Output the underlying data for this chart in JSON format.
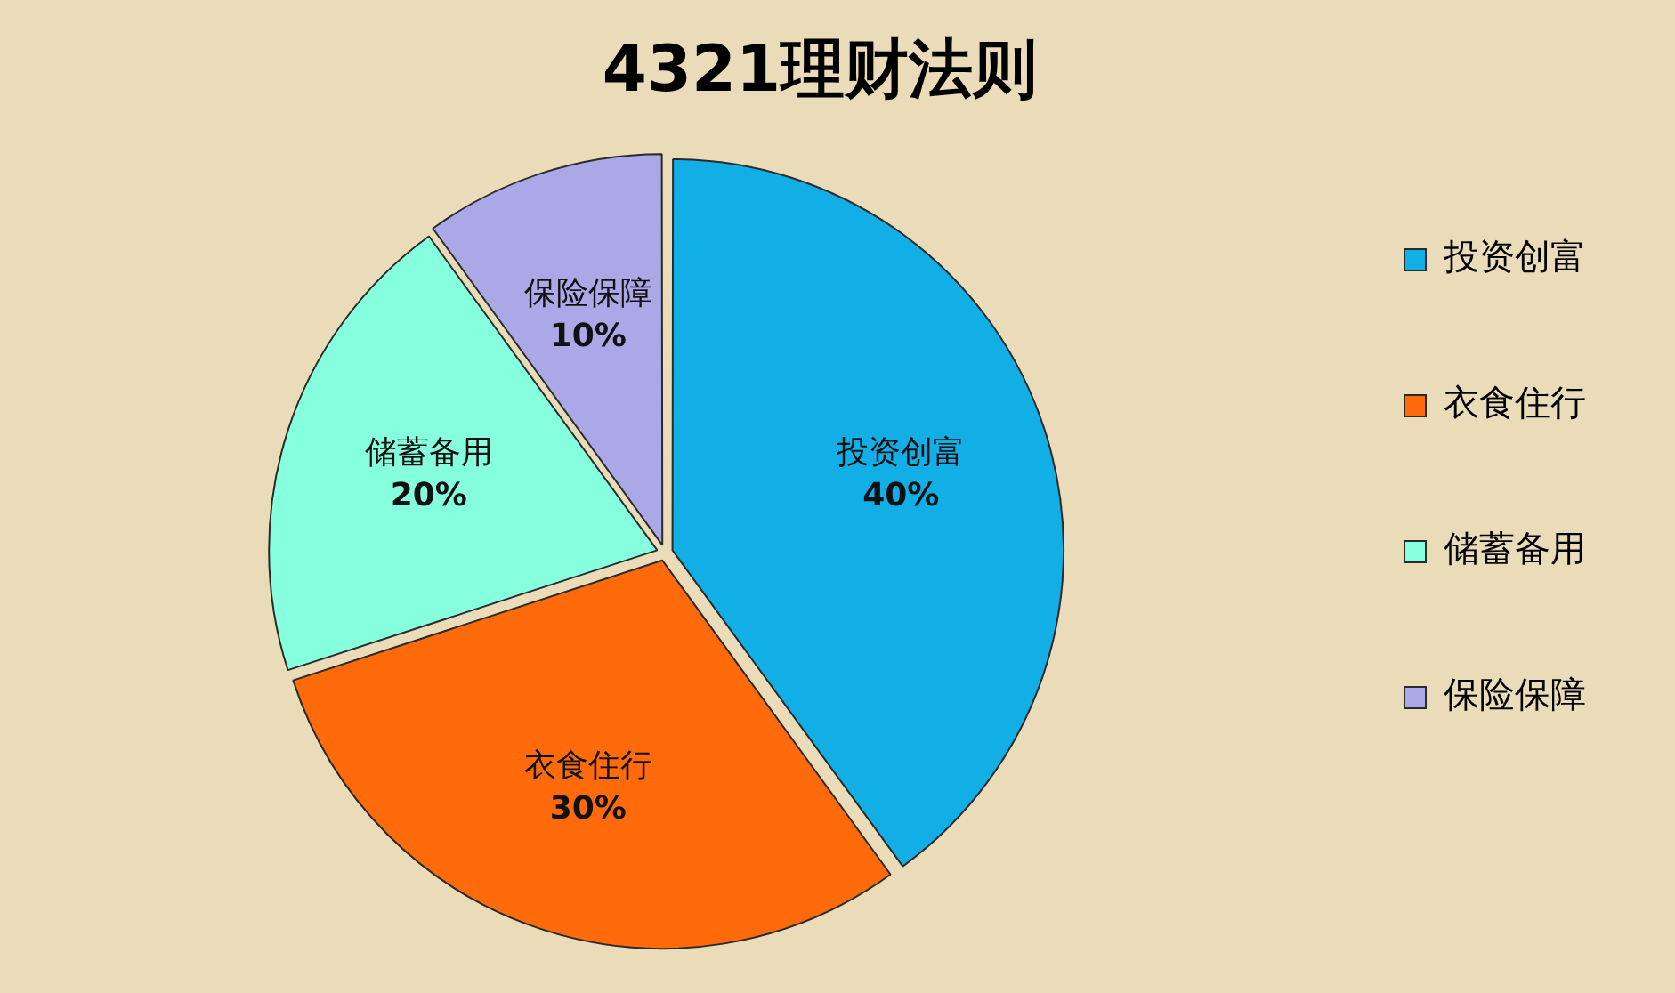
{
  "chart_data": {
    "type": "pie",
    "title": "4321理财法则",
    "categories": [
      "投资创富",
      "衣食住行",
      "储蓄备用",
      "保险保障"
    ],
    "values": [
      40,
      30,
      20,
      10
    ],
    "value_labels": [
      "40%",
      "30%",
      "20%",
      "10%"
    ],
    "colors": [
      "#12aee6",
      "#ff6a0a",
      "#86ffdf",
      "#aaa8e6"
    ],
    "legend": "right"
  }
}
